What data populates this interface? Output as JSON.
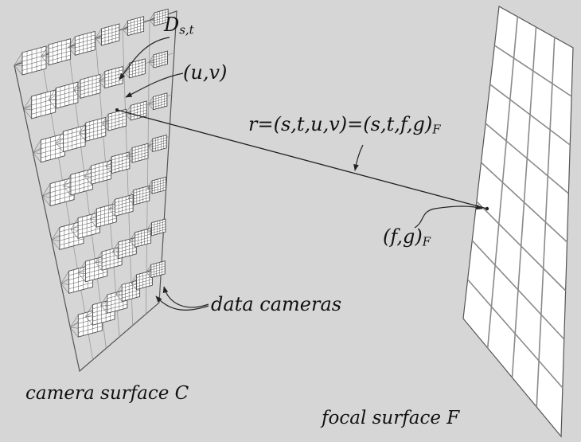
{
  "diagram": {
    "labels": {
      "data_camera_symbol": "D",
      "data_camera_subscript": "s,t",
      "sample_point": "(u,v)",
      "ray_equation": "r=(s,t,u,v)=(s,t,f,g)",
      "ray_equation_subscript": "F",
      "focal_point": "(f,g)",
      "focal_point_subscript": "F",
      "data_cameras": "data cameras",
      "camera_surface": "camera surface C",
      "focal_surface": "focal surface F"
    },
    "camera_surface": {
      "rows": 7,
      "cols": 6
    },
    "focal_surface": {
      "rows": 8,
      "cols": 4
    },
    "colors": {
      "background": "#d6d6d6",
      "surface_fill": "#ffffff",
      "grid_line": "#8a8a8a",
      "edge_line": "#555555",
      "ray": "#222222",
      "text": "#111111"
    }
  }
}
